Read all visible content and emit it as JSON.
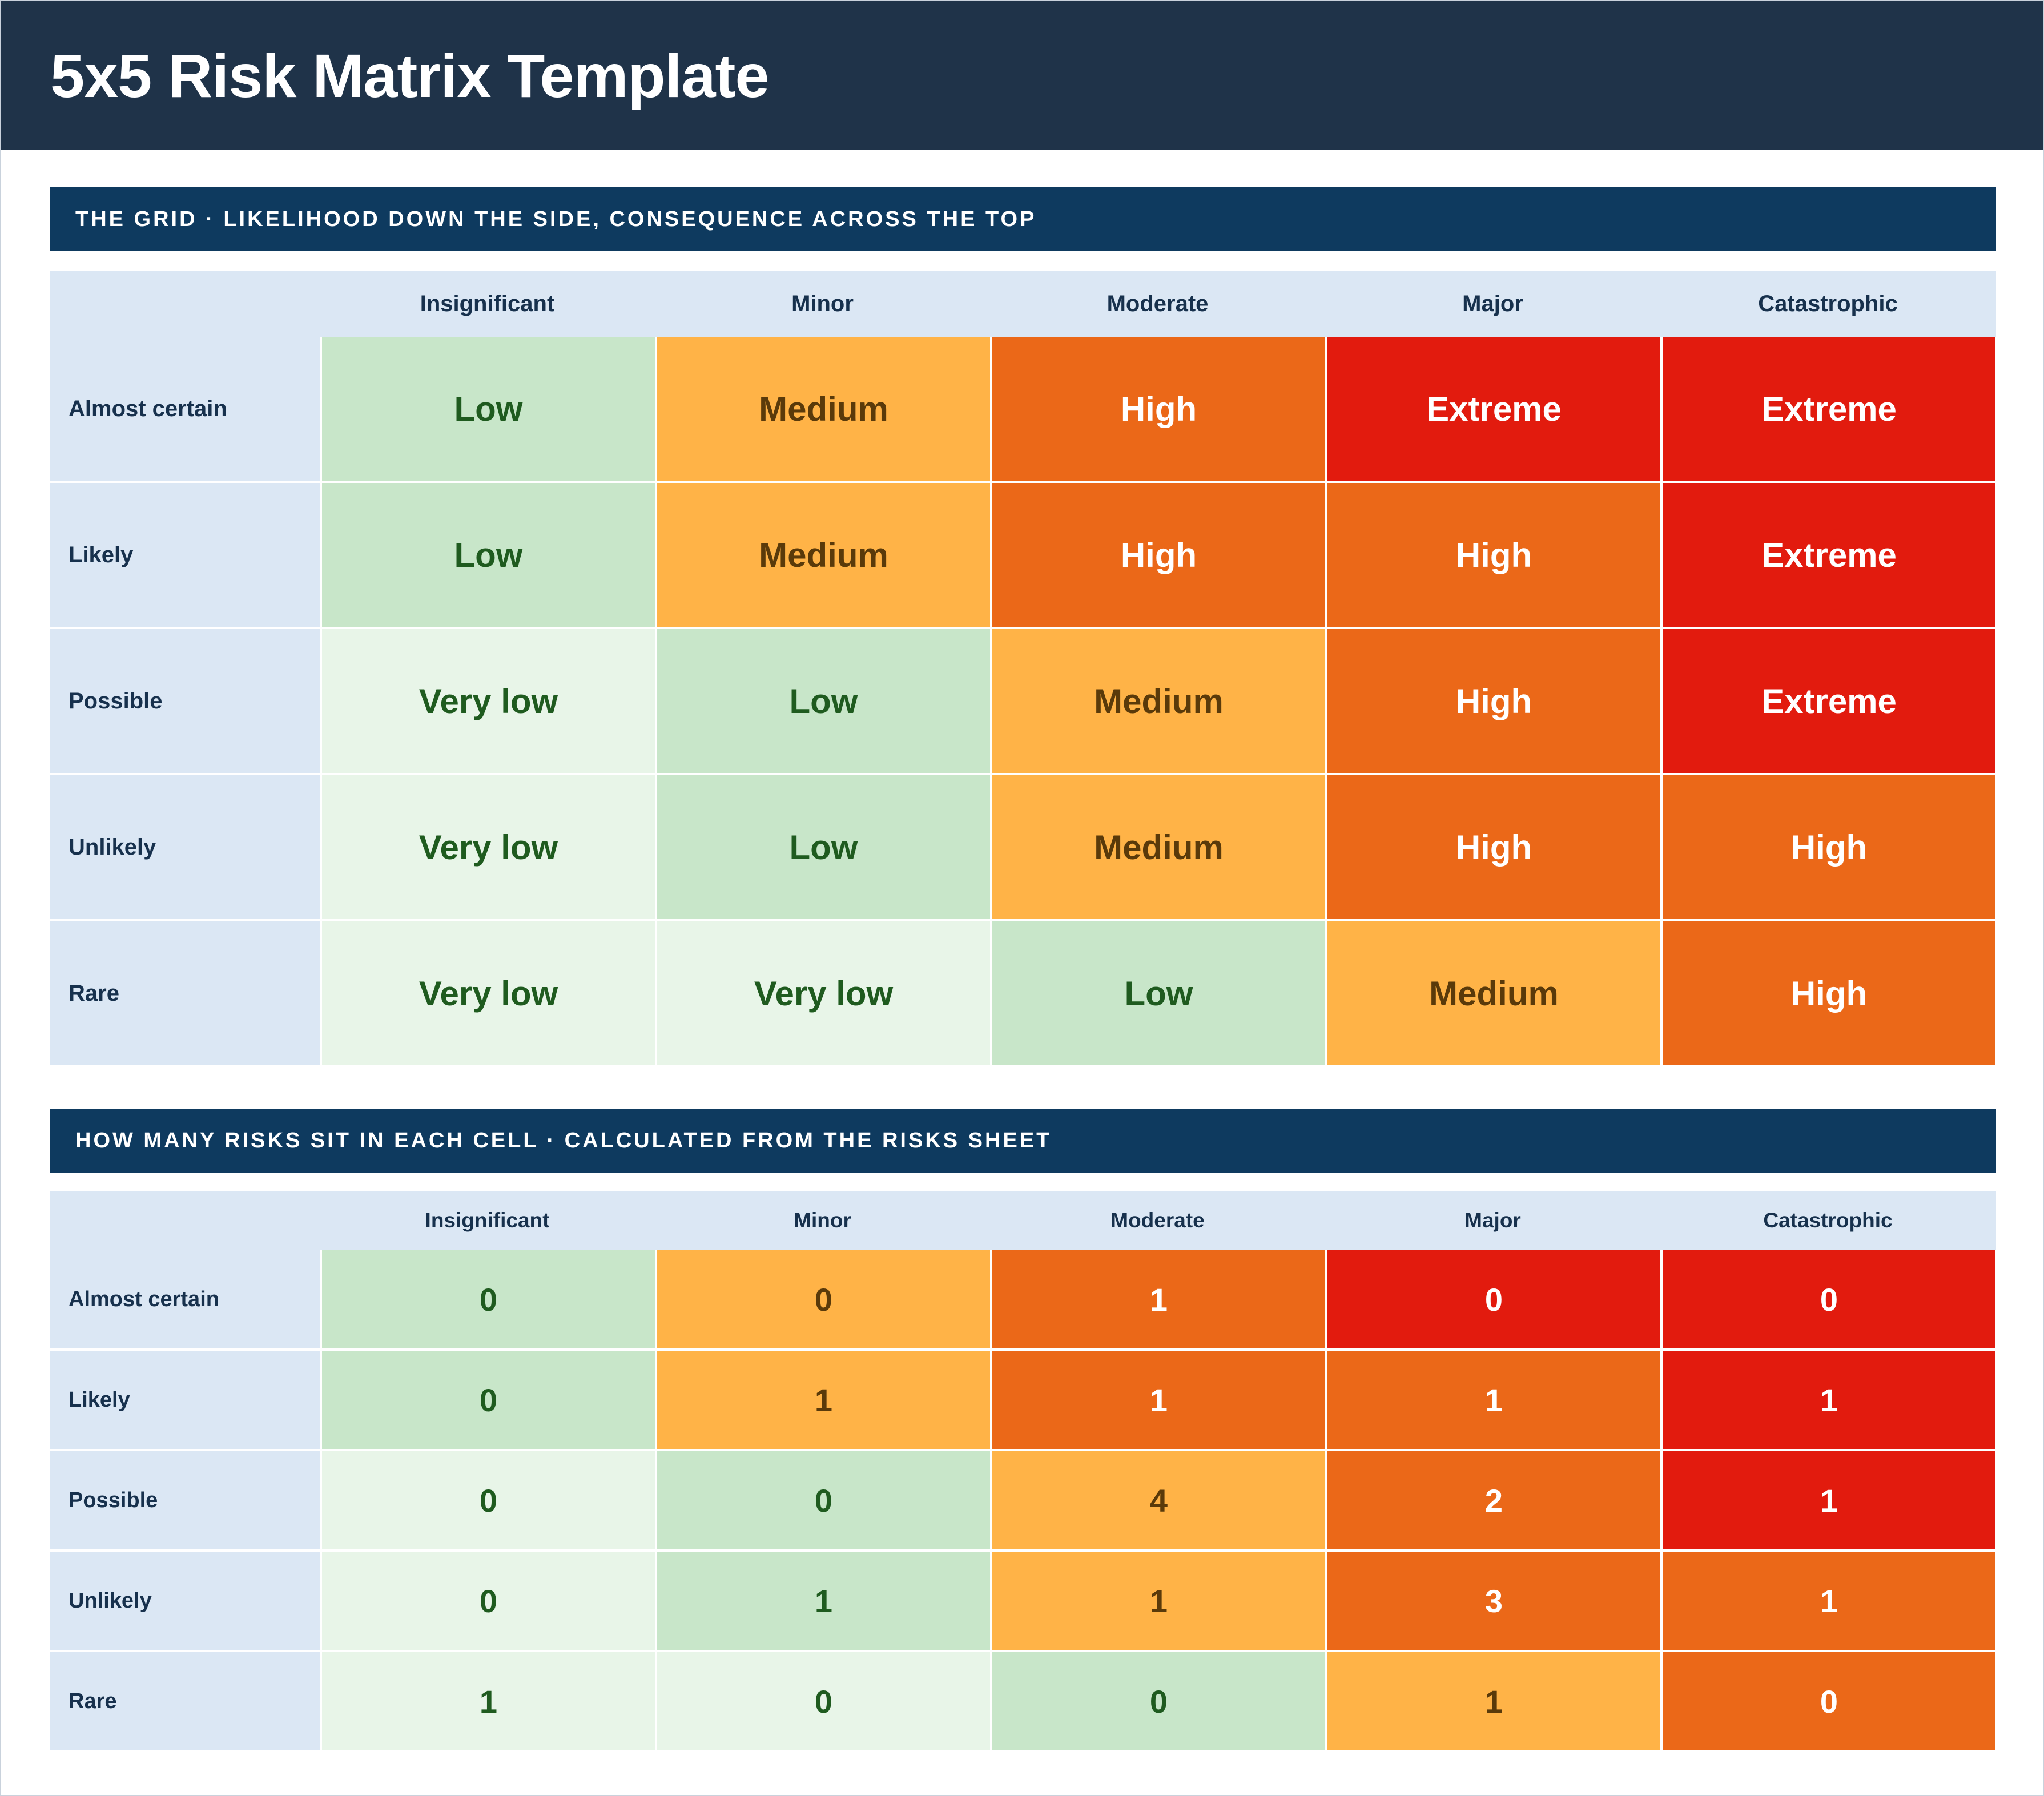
{
  "title": "5x5 Risk Matrix Template",
  "grid_section": {
    "banner": "THE GRID  ·  LIKELIHOOD DOWN THE SIDE, CONSEQUENCE ACROSS THE TOP",
    "consequences": [
      "Insignificant",
      "Minor",
      "Moderate",
      "Major",
      "Catastrophic"
    ],
    "rows": [
      {
        "likelihood": "Almost certain",
        "cells": [
          "Low",
          "Medium",
          "High",
          "Extreme",
          "Extreme"
        ]
      },
      {
        "likelihood": "Likely",
        "cells": [
          "Low",
          "Medium",
          "High",
          "High",
          "Extreme"
        ]
      },
      {
        "likelihood": "Possible",
        "cells": [
          "Very low",
          "Low",
          "Medium",
          "High",
          "Extreme"
        ]
      },
      {
        "likelihood": "Unlikely",
        "cells": [
          "Very low",
          "Low",
          "Medium",
          "High",
          "High"
        ]
      },
      {
        "likelihood": "Rare",
        "cells": [
          "Very low",
          "Very low",
          "Low",
          "Medium",
          "High"
        ]
      }
    ]
  },
  "count_section": {
    "banner": "HOW MANY RISKS SIT IN EACH CELL  ·  CALCULATED FROM THE RISKS SHEET",
    "consequences": [
      "Insignificant",
      "Minor",
      "Moderate",
      "Major",
      "Catastrophic"
    ],
    "rows": [
      {
        "likelihood": "Almost certain",
        "counts": [
          "0",
          "0",
          "1",
          "0",
          "0"
        ]
      },
      {
        "likelihood": "Likely",
        "counts": [
          "0",
          "1",
          "1",
          "1",
          "1"
        ]
      },
      {
        "likelihood": "Possible",
        "counts": [
          "0",
          "0",
          "4",
          "2",
          "1"
        ]
      },
      {
        "likelihood": "Unlikely",
        "counts": [
          "0",
          "1",
          "1",
          "3",
          "1"
        ]
      },
      {
        "likelihood": "Rare",
        "counts": [
          "1",
          "0",
          "0",
          "1",
          "0"
        ]
      }
    ]
  },
  "level_colors": {
    "Very low": "#e8f5e8",
    "Low": "#c8e6c9",
    "Medium": "#ffb347",
    "High": "#eb6818",
    "Extreme": "#e21b0e"
  }
}
